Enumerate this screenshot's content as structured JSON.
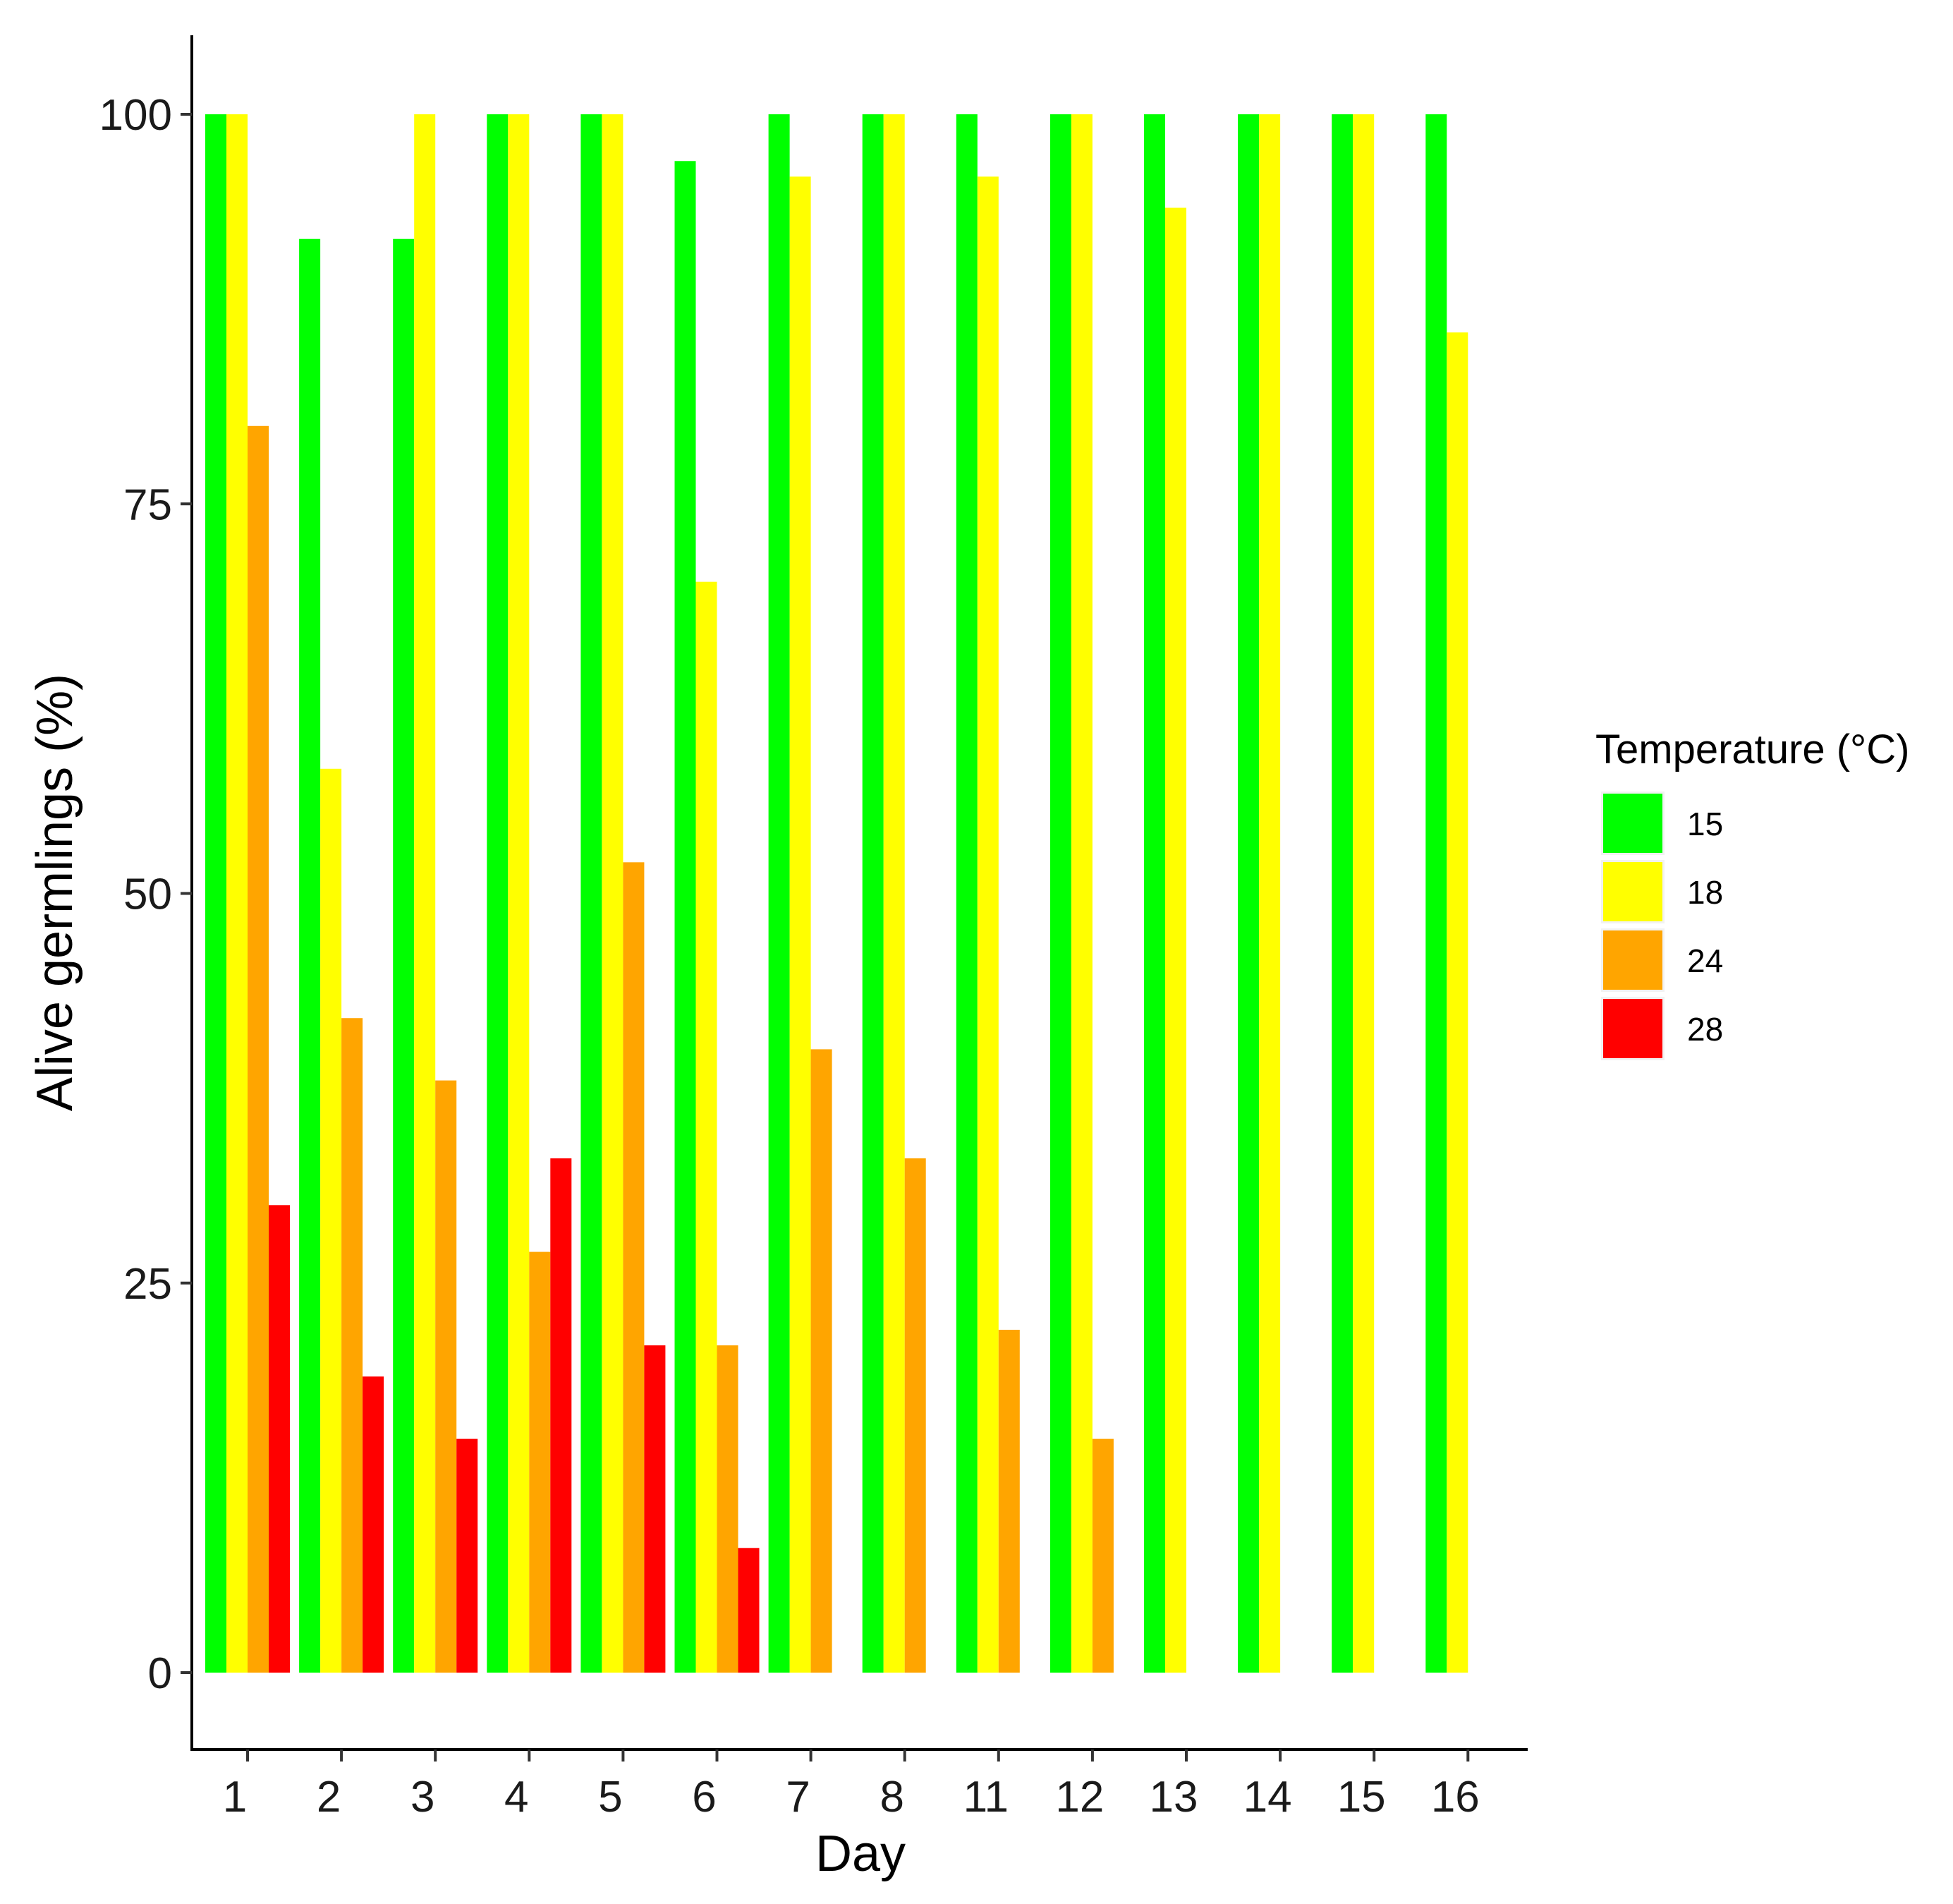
{
  "chart_data": {
    "type": "bar",
    "title": "",
    "xlabel": "Day",
    "ylabel": "Alive germlings (%)",
    "ylim": [
      -5,
      105
    ],
    "yticks": [
      0,
      25,
      50,
      75,
      100
    ],
    "ytick_labels": [
      "0",
      "25",
      "50",
      "75",
      "100"
    ],
    "grid": false,
    "legend_position": "right",
    "legend_title": "Temperature (°C)",
    "categories": [
      "1",
      "2",
      "3",
      "4",
      "5",
      "6",
      "7",
      "8",
      "11",
      "12",
      "13",
      "14",
      "15",
      "16"
    ],
    "series": [
      {
        "name": "15",
        "color": "#00ff00",
        "values": [
          100,
          92,
          92,
          100,
          100,
          97,
          100,
          100,
          100,
          100,
          100,
          100,
          100,
          100
        ]
      },
      {
        "name": "18",
        "color": "#ffff00",
        "values": [
          100,
          58,
          100,
          100,
          100,
          70,
          96,
          100,
          96,
          100,
          94,
          100,
          100,
          86
        ]
      },
      {
        "name": "24",
        "color": "#ffa500",
        "values": [
          80,
          42,
          38,
          27,
          52,
          21,
          40,
          33,
          22,
          15,
          null,
          null,
          null,
          null
        ]
      },
      {
        "name": "28",
        "color": "#ff0000",
        "values": [
          30,
          19,
          15,
          33,
          21,
          8,
          null,
          null,
          null,
          null,
          null,
          null,
          null,
          null
        ]
      }
    ]
  }
}
